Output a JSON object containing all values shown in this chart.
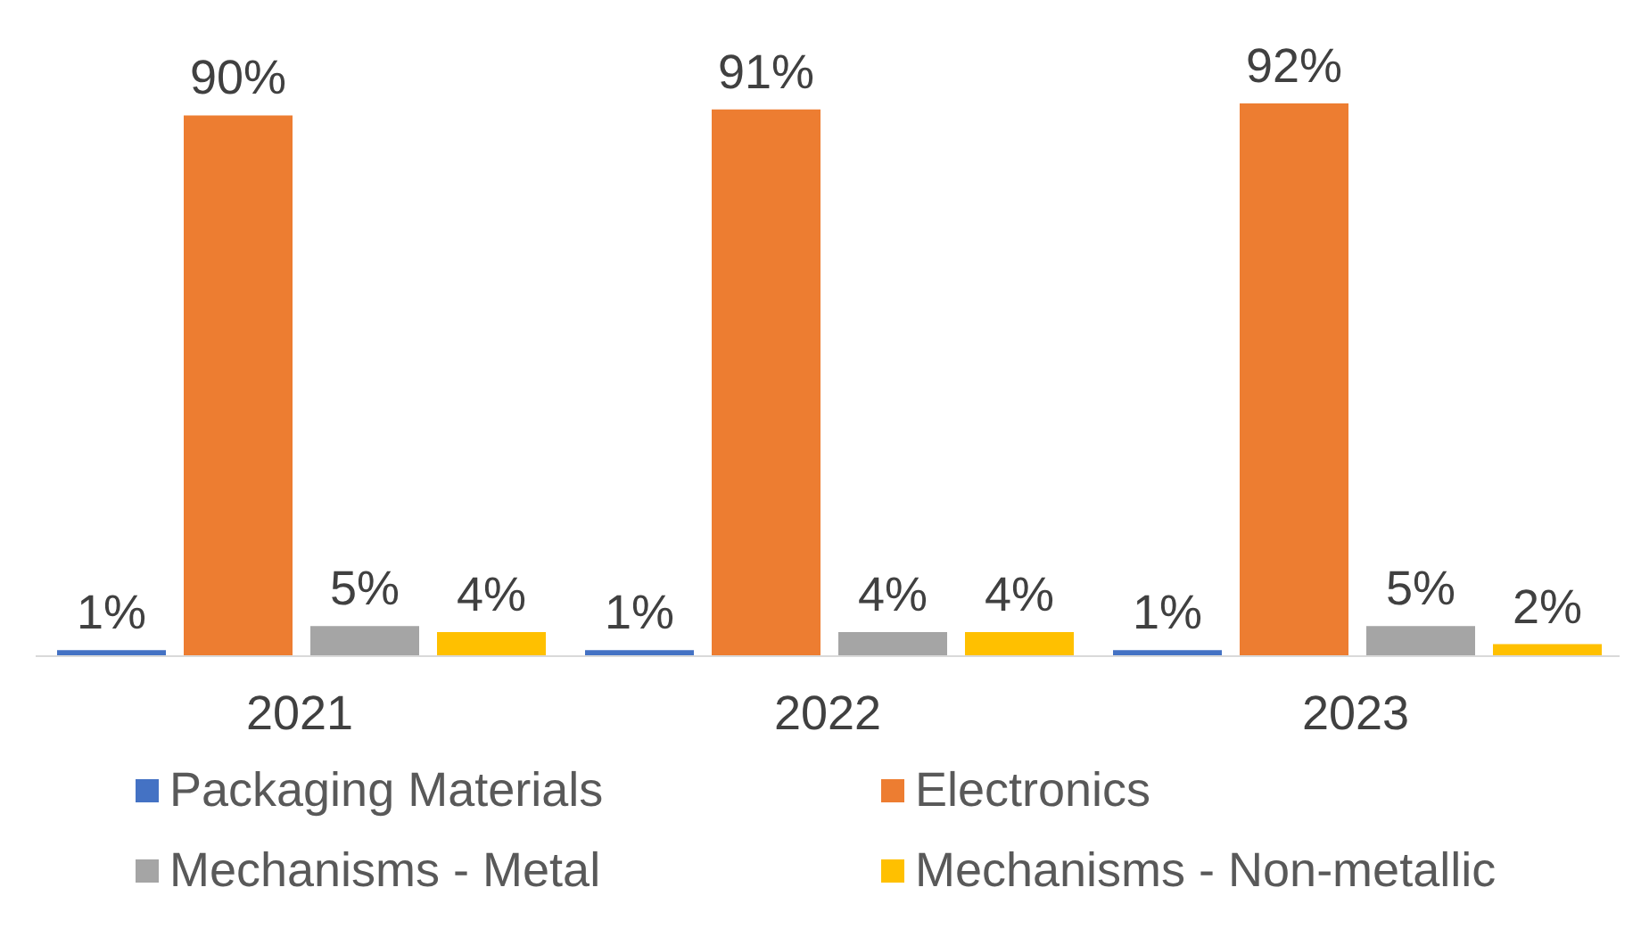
{
  "chart_data": {
    "type": "bar",
    "categories": [
      "2021",
      "2022",
      "2023"
    ],
    "series": [
      {
        "name": "Packaging Materials",
        "color": "#4472c4",
        "values": [
          1,
          1,
          1
        ],
        "value_labels": [
          "1%",
          "1%",
          "1%"
        ]
      },
      {
        "name": "Electronics",
        "color": "#ed7d31",
        "values": [
          90,
          91,
          92
        ],
        "value_labels": [
          "90%",
          "91%",
          "92%"
        ]
      },
      {
        "name": "Mechanisms - Metal",
        "color": "#a5a5a5",
        "values": [
          5,
          4,
          5
        ],
        "value_labels": [
          "5%",
          "4%",
          "5%"
        ]
      },
      {
        "name": "Mechanisms - Non-metallic",
        "color": "#ffc000",
        "values": [
          4,
          4,
          2
        ],
        "value_labels": [
          "4%",
          "4%",
          "2%"
        ]
      }
    ],
    "legend": "bottom",
    "grid": false
  }
}
